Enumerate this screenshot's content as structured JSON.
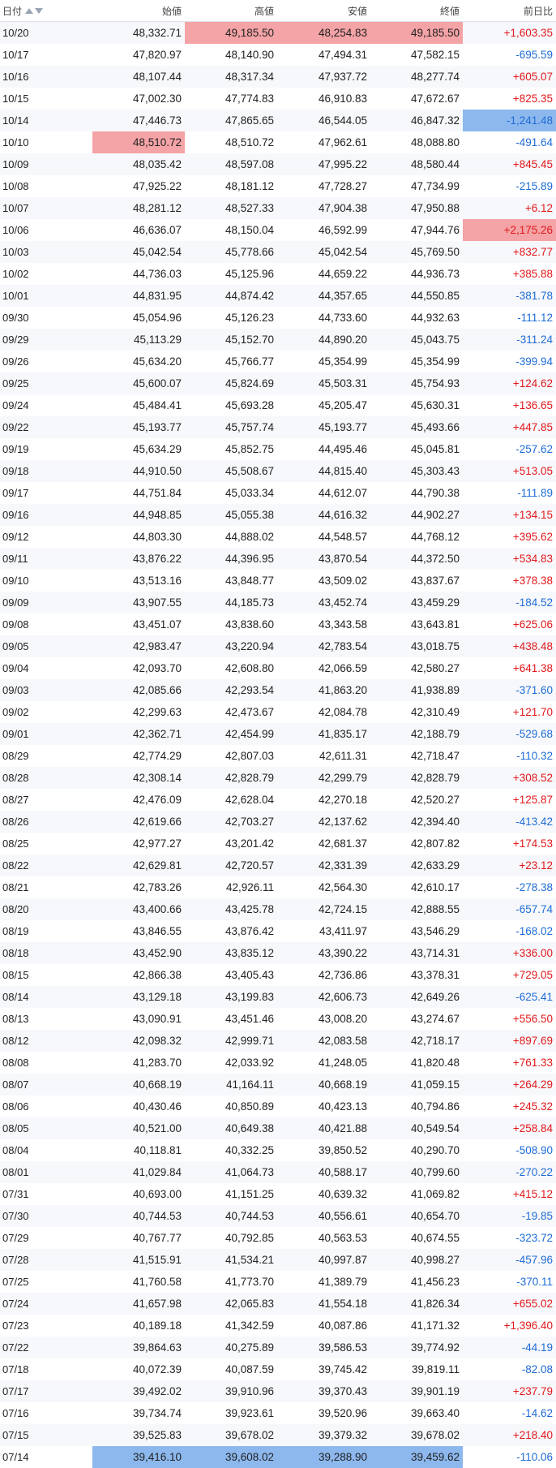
{
  "headers": {
    "date": "日付",
    "open": "始値",
    "high": "高値",
    "low": "安値",
    "close": "終値",
    "change": "前日比"
  },
  "sort_icons": [
    "sort-ascending-icon",
    "sort-descending-icon"
  ],
  "colors": {
    "positive": "#e0191c",
    "negative": "#1e6cd6",
    "highlight_high": "#f4a3a6",
    "highlight_low": "#8db8ee"
  },
  "rows": [
    {
      "date": "10/20",
      "open": "48,332.71",
      "high": "49,185.50",
      "low": "48,254.83",
      "close": "49,185.50",
      "change": "+1,603.35",
      "hl": {
        "high": "red",
        "low": "red",
        "close": "red"
      }
    },
    {
      "date": "10/17",
      "open": "47,820.97",
      "high": "48,140.90",
      "low": "47,494.31",
      "close": "47,582.15",
      "change": "-695.59"
    },
    {
      "date": "10/16",
      "open": "48,107.44",
      "high": "48,317.34",
      "low": "47,937.72",
      "close": "48,277.74",
      "change": "+605.07"
    },
    {
      "date": "10/15",
      "open": "47,002.30",
      "high": "47,774.83",
      "low": "46,910.83",
      "close": "47,672.67",
      "change": "+825.35"
    },
    {
      "date": "10/14",
      "open": "47,446.73",
      "high": "47,865.65",
      "low": "46,544.05",
      "close": "46,847.32",
      "change": "-1,241.48",
      "hl": {
        "change": "blue"
      }
    },
    {
      "date": "10/10",
      "open": "48,510.72",
      "high": "48,510.72",
      "low": "47,962.61",
      "close": "48,088.80",
      "change": "-491.64",
      "hl": {
        "open": "red"
      }
    },
    {
      "date": "10/09",
      "open": "48,035.42",
      "high": "48,597.08",
      "low": "47,995.22",
      "close": "48,580.44",
      "change": "+845.45"
    },
    {
      "date": "10/08",
      "open": "47,925.22",
      "high": "48,181.12",
      "low": "47,728.27",
      "close": "47,734.99",
      "change": "-215.89"
    },
    {
      "date": "10/07",
      "open": "48,281.12",
      "high": "48,527.33",
      "low": "47,904.38",
      "close": "47,950.88",
      "change": "+6.12"
    },
    {
      "date": "10/06",
      "open": "46,636.07",
      "high": "48,150.04",
      "low": "46,592.99",
      "close": "47,944.76",
      "change": "+2,175.26",
      "hl": {
        "change": "red"
      }
    },
    {
      "date": "10/03",
      "open": "45,042.54",
      "high": "45,778.66",
      "low": "45,042.54",
      "close": "45,769.50",
      "change": "+832.77"
    },
    {
      "date": "10/02",
      "open": "44,736.03",
      "high": "45,125.96",
      "low": "44,659.22",
      "close": "44,936.73",
      "change": "+385.88"
    },
    {
      "date": "10/01",
      "open": "44,831.95",
      "high": "44,874.42",
      "low": "44,357.65",
      "close": "44,550.85",
      "change": "-381.78"
    },
    {
      "date": "09/30",
      "open": "45,054.96",
      "high": "45,126.23",
      "low": "44,733.60",
      "close": "44,932.63",
      "change": "-111.12"
    },
    {
      "date": "09/29",
      "open": "45,113.29",
      "high": "45,152.70",
      "low": "44,890.20",
      "close": "45,043.75",
      "change": "-311.24"
    },
    {
      "date": "09/26",
      "open": "45,634.20",
      "high": "45,766.77",
      "low": "45,354.99",
      "close": "45,354.99",
      "change": "-399.94"
    },
    {
      "date": "09/25",
      "open": "45,600.07",
      "high": "45,824.69",
      "low": "45,503.31",
      "close": "45,754.93",
      "change": "+124.62"
    },
    {
      "date": "09/24",
      "open": "45,484.41",
      "high": "45,693.28",
      "low": "45,205.47",
      "close": "45,630.31",
      "change": "+136.65"
    },
    {
      "date": "09/22",
      "open": "45,193.77",
      "high": "45,757.74",
      "low": "45,193.77",
      "close": "45,493.66",
      "change": "+447.85"
    },
    {
      "date": "09/19",
      "open": "45,634.29",
      "high": "45,852.75",
      "low": "44,495.46",
      "close": "45,045.81",
      "change": "-257.62"
    },
    {
      "date": "09/18",
      "open": "44,910.50",
      "high": "45,508.67",
      "low": "44,815.40",
      "close": "45,303.43",
      "change": "+513.05"
    },
    {
      "date": "09/17",
      "open": "44,751.84",
      "high": "45,033.34",
      "low": "44,612.07",
      "close": "44,790.38",
      "change": "-111.89"
    },
    {
      "date": "09/16",
      "open": "44,948.85",
      "high": "45,055.38",
      "low": "44,616.32",
      "close": "44,902.27",
      "change": "+134.15"
    },
    {
      "date": "09/12",
      "open": "44,803.30",
      "high": "44,888.02",
      "low": "44,548.57",
      "close": "44,768.12",
      "change": "+395.62"
    },
    {
      "date": "09/11",
      "open": "43,876.22",
      "high": "44,396.95",
      "low": "43,870.54",
      "close": "44,372.50",
      "change": "+534.83"
    },
    {
      "date": "09/10",
      "open": "43,513.16",
      "high": "43,848.77",
      "low": "43,509.02",
      "close": "43,837.67",
      "change": "+378.38"
    },
    {
      "date": "09/09",
      "open": "43,907.55",
      "high": "44,185.73",
      "low": "43,452.74",
      "close": "43,459.29",
      "change": "-184.52"
    },
    {
      "date": "09/08",
      "open": "43,451.07",
      "high": "43,838.60",
      "low": "43,343.58",
      "close": "43,643.81",
      "change": "+625.06"
    },
    {
      "date": "09/05",
      "open": "42,983.47",
      "high": "43,220.94",
      "low": "42,783.54",
      "close": "43,018.75",
      "change": "+438.48"
    },
    {
      "date": "09/04",
      "open": "42,093.70",
      "high": "42,608.80",
      "low": "42,066.59",
      "close": "42,580.27",
      "change": "+641.38"
    },
    {
      "date": "09/03",
      "open": "42,085.66",
      "high": "42,293.54",
      "low": "41,863.20",
      "close": "41,938.89",
      "change": "-371.60"
    },
    {
      "date": "09/02",
      "open": "42,299.63",
      "high": "42,473.67",
      "low": "42,084.78",
      "close": "42,310.49",
      "change": "+121.70"
    },
    {
      "date": "09/01",
      "open": "42,362.71",
      "high": "42,454.99",
      "low": "41,835.17",
      "close": "42,188.79",
      "change": "-529.68"
    },
    {
      "date": "08/29",
      "open": "42,774.29",
      "high": "42,807.03",
      "low": "42,611.31",
      "close": "42,718.47",
      "change": "-110.32"
    },
    {
      "date": "08/28",
      "open": "42,308.14",
      "high": "42,828.79",
      "low": "42,299.79",
      "close": "42,828.79",
      "change": "+308.52"
    },
    {
      "date": "08/27",
      "open": "42,476.09",
      "high": "42,628.04",
      "low": "42,270.18",
      "close": "42,520.27",
      "change": "+125.87"
    },
    {
      "date": "08/26",
      "open": "42,619.66",
      "high": "42,703.27",
      "low": "42,137.62",
      "close": "42,394.40",
      "change": "-413.42"
    },
    {
      "date": "08/25",
      "open": "42,977.27",
      "high": "43,201.42",
      "low": "42,681.37",
      "close": "42,807.82",
      "change": "+174.53"
    },
    {
      "date": "08/22",
      "open": "42,629.81",
      "high": "42,720.57",
      "low": "42,331.39",
      "close": "42,633.29",
      "change": "+23.12"
    },
    {
      "date": "08/21",
      "open": "42,783.26",
      "high": "42,926.11",
      "low": "42,564.30",
      "close": "42,610.17",
      "change": "-278.38"
    },
    {
      "date": "08/20",
      "open": "43,400.66",
      "high": "43,425.78",
      "low": "42,724.15",
      "close": "42,888.55",
      "change": "-657.74"
    },
    {
      "date": "08/19",
      "open": "43,846.55",
      "high": "43,876.42",
      "low": "43,411.97",
      "close": "43,546.29",
      "change": "-168.02"
    },
    {
      "date": "08/18",
      "open": "43,452.90",
      "high": "43,835.12",
      "low": "43,390.22",
      "close": "43,714.31",
      "change": "+336.00"
    },
    {
      "date": "08/15",
      "open": "42,866.38",
      "high": "43,405.43",
      "low": "42,736.86",
      "close": "43,378.31",
      "change": "+729.05"
    },
    {
      "date": "08/14",
      "open": "43,129.18",
      "high": "43,199.83",
      "low": "42,606.73",
      "close": "42,649.26",
      "change": "-625.41"
    },
    {
      "date": "08/13",
      "open": "43,090.91",
      "high": "43,451.46",
      "low": "43,008.20",
      "close": "43,274.67",
      "change": "+556.50"
    },
    {
      "date": "08/12",
      "open": "42,098.32",
      "high": "42,999.71",
      "low": "42,083.58",
      "close": "42,718.17",
      "change": "+897.69"
    },
    {
      "date": "08/08",
      "open": "41,283.70",
      "high": "42,033.92",
      "low": "41,248.05",
      "close": "41,820.48",
      "change": "+761.33"
    },
    {
      "date": "08/07",
      "open": "40,668.19",
      "high": "41,164.11",
      "low": "40,668.19",
      "close": "41,059.15",
      "change": "+264.29"
    },
    {
      "date": "08/06",
      "open": "40,430.46",
      "high": "40,850.89",
      "low": "40,423.13",
      "close": "40,794.86",
      "change": "+245.32"
    },
    {
      "date": "08/05",
      "open": "40,521.00",
      "high": "40,649.38",
      "low": "40,421.88",
      "close": "40,549.54",
      "change": "+258.84"
    },
    {
      "date": "08/04",
      "open": "40,118.81",
      "high": "40,332.25",
      "low": "39,850.52",
      "close": "40,290.70",
      "change": "-508.90"
    },
    {
      "date": "08/01",
      "open": "41,029.84",
      "high": "41,064.73",
      "low": "40,588.17",
      "close": "40,799.60",
      "change": "-270.22"
    },
    {
      "date": "07/31",
      "open": "40,693.00",
      "high": "41,151.25",
      "low": "40,639.32",
      "close": "41,069.82",
      "change": "+415.12"
    },
    {
      "date": "07/30",
      "open": "40,744.53",
      "high": "40,744.53",
      "low": "40,556.61",
      "close": "40,654.70",
      "change": "-19.85"
    },
    {
      "date": "07/29",
      "open": "40,767.77",
      "high": "40,792.85",
      "low": "40,563.53",
      "close": "40,674.55",
      "change": "-323.72"
    },
    {
      "date": "07/28",
      "open": "41,515.91",
      "high": "41,534.21",
      "low": "40,997.87",
      "close": "40,998.27",
      "change": "-457.96"
    },
    {
      "date": "07/25",
      "open": "41,760.58",
      "high": "41,773.70",
      "low": "41,389.79",
      "close": "41,456.23",
      "change": "-370.11"
    },
    {
      "date": "07/24",
      "open": "41,657.98",
      "high": "42,065.83",
      "low": "41,554.18",
      "close": "41,826.34",
      "change": "+655.02"
    },
    {
      "date": "07/23",
      "open": "40,189.18",
      "high": "41,342.59",
      "low": "40,087.86",
      "close": "41,171.32",
      "change": "+1,396.40"
    },
    {
      "date": "07/22",
      "open": "39,864.63",
      "high": "40,275.89",
      "low": "39,586.53",
      "close": "39,774.92",
      "change": "-44.19"
    },
    {
      "date": "07/18",
      "open": "40,072.39",
      "high": "40,087.59",
      "low": "39,745.42",
      "close": "39,819.11",
      "change": "-82.08"
    },
    {
      "date": "07/17",
      "open": "39,492.02",
      "high": "39,910.96",
      "low": "39,370.43",
      "close": "39,901.19",
      "change": "+237.79"
    },
    {
      "date": "07/16",
      "open": "39,734.74",
      "high": "39,923.61",
      "low": "39,520.96",
      "close": "39,663.40",
      "change": "-14.62"
    },
    {
      "date": "07/15",
      "open": "39,525.83",
      "high": "39,678.02",
      "low": "39,379.32",
      "close": "39,678.02",
      "change": "+218.40"
    },
    {
      "date": "07/14",
      "open": "39,416.10",
      "high": "39,608.02",
      "low": "39,288.90",
      "close": "39,459.62",
      "change": "-110.06",
      "hl": {
        "open": "blue",
        "high": "blue",
        "low": "blue",
        "close": "blue"
      }
    }
  ]
}
